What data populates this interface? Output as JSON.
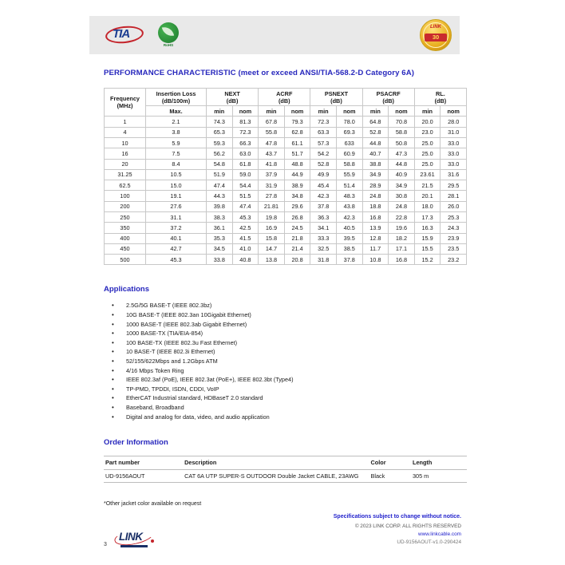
{
  "header_band": {
    "tia_label": "TIA",
    "rohs_label": "RoHS",
    "badge_brand": "LINK",
    "badge_years": "30"
  },
  "heading": "PERFORMANCE CHARACTERISTIC (meet or exceed ANSI/TIA-568.2-D Category 6A)",
  "perf_table": {
    "headers": {
      "frequency_l1": "Frequency",
      "frequency_l2": "(MHz)",
      "insertion_l1": "Insertion Loss",
      "insertion_l2": "(dB/100m)",
      "insertion_sub": "Max.",
      "groups": [
        {
          "l1": "NEXT",
          "l2": "(dB)"
        },
        {
          "l1": "ACRF",
          "l2": "(dB)"
        },
        {
          "l1": "PSNEXT",
          "l2": "(dB)"
        },
        {
          "l1": "PSACRF",
          "l2": "(dB)"
        },
        {
          "l1": "RL.",
          "l2": "(dB)"
        }
      ],
      "min": "min",
      "nom": "nom"
    },
    "rows": [
      [
        "1",
        "2.1",
        "74.3",
        "81.3",
        "67.8",
        "79.3",
        "72.3",
        "78.0",
        "64.8",
        "70.8",
        "20.0",
        "28.0"
      ],
      [
        "4",
        "3.8",
        "65.3",
        "72.3",
        "55.8",
        "62.8",
        "63.3",
        "69.3",
        "52.8",
        "58.8",
        "23.0",
        "31.0"
      ],
      [
        "10",
        "5.9",
        "59.3",
        "66.3",
        "47.8",
        "61.1",
        "57.3",
        "633",
        "44.8",
        "50.8",
        "25.0",
        "33.0"
      ],
      [
        "16",
        "7.5",
        "56.2",
        "63.0",
        "43.7",
        "51.7",
        "54.2",
        "60.9",
        "40.7",
        "47.3",
        "25.0",
        "33.0"
      ],
      [
        "20",
        "8.4",
        "54.8",
        "61.8",
        "41.8",
        "48.8",
        "52.8",
        "58.8",
        "38.8",
        "44.8",
        "25.0",
        "33.0"
      ],
      [
        "31.25",
        "10.5",
        "51.9",
        "59.0",
        "37.9",
        "44.9",
        "49.9",
        "55.9",
        "34.9",
        "40.9",
        "23.61",
        "31.6"
      ],
      [
        "62.5",
        "15.0",
        "47.4",
        "54.4",
        "31.9",
        "38.9",
        "45.4",
        "51.4",
        "28.9",
        "34.9",
        "21.5",
        "29.5"
      ],
      [
        "100",
        "19.1",
        "44.3",
        "51.5",
        "27.8",
        "34.8",
        "42.3",
        "48.3",
        "24.8",
        "30.8",
        "20.1",
        "28.1"
      ],
      [
        "200",
        "27.6",
        "39.8",
        "47.4",
        "21.81",
        "29.6",
        "37.8",
        "43.8",
        "18.8",
        "24.8",
        "18.0",
        "26.0"
      ],
      [
        "250",
        "31.1",
        "38.3",
        "45.3",
        "19.8",
        "26.8",
        "36.3",
        "42.3",
        "16.8",
        "22.8",
        "17.3",
        "25.3"
      ],
      [
        "350",
        "37.2",
        "36.1",
        "42.5",
        "16.9",
        "24.5",
        "34.1",
        "40.5",
        "13.9",
        "19.6",
        "16.3",
        "24.3"
      ],
      [
        "400",
        "40.1",
        "35.3",
        "41.5",
        "15.8",
        "21.8",
        "33.3",
        "39.5",
        "12.8",
        "18.2",
        "15.9",
        "23.9"
      ],
      [
        "450",
        "42.7",
        "34.5",
        "41.0",
        "14.7",
        "21.4",
        "32.5",
        "38.5",
        "11.7",
        "17.1",
        "15.5",
        "23.5"
      ],
      [
        "500",
        "45.3",
        "33.8",
        "40.8",
        "13.8",
        "20.8",
        "31.8",
        "37.8",
        "10.8",
        "16.8",
        "15.2",
        "23.2"
      ]
    ]
  },
  "applications": {
    "heading": "Applications",
    "items": [
      "2.5G/5G BASE-T (IEEE 802.3bz)",
      "10G BASE-T (IEEE 802.3an 10Gigabit Ethernet)",
      "1000 BASE-T (IEEE 802.3ab Gigabit Ethernet)",
      "1000 BASE-TX (TIA/EIA-854)",
      "100 BASE-TX (IEEE 802.3u Fast Ethernet)",
      "10 BASE-T (IEEE 802.3i Ethernet)",
      "52/155/622Mbps and 1.2Gbps ATM",
      "4/16 Mbps Token Ring",
      "IEEE 802.3af (PoE), IEEE 802.3at (PoE+), IEEE 802.3bt (Type4)",
      "TP-PMD, TPDDI, ISDN, CDDI, VoIP",
      "EtherCAT Industrial standard, HDBaseT 2.0 standard",
      "Baseband, Broadband",
      "Digital and analog for data, video, and audio application"
    ]
  },
  "order_info": {
    "heading": "Order Information",
    "columns": [
      "Part number",
      "Description",
      "Color",
      "Length"
    ],
    "rows": [
      {
        "part_number": "UD-9156AOUT",
        "description": "CAT 6A UTP SUPER-S OUTDOOR Double Jacket CABLE, 23AWG",
        "color": "Black",
        "length": "305 m"
      }
    ]
  },
  "footnote": "*Other jacket color available on request",
  "footer": {
    "page_number": "3",
    "brand": "LINK",
    "notice": "Specifications subject to change without notice.",
    "copyright": "© 2023 LINK CORP. ALL RIGHTS RESERVED",
    "website": "www.linkcable.com",
    "doc_code": "UD-9156AOUT-v1.0-290424"
  },
  "colors": {
    "heading_blue": "#2727bd",
    "accent_red": "#c4242b",
    "navy": "#1b3d91",
    "band_gray": "#e9e9e9",
    "table_border": "#c8c8c8"
  }
}
